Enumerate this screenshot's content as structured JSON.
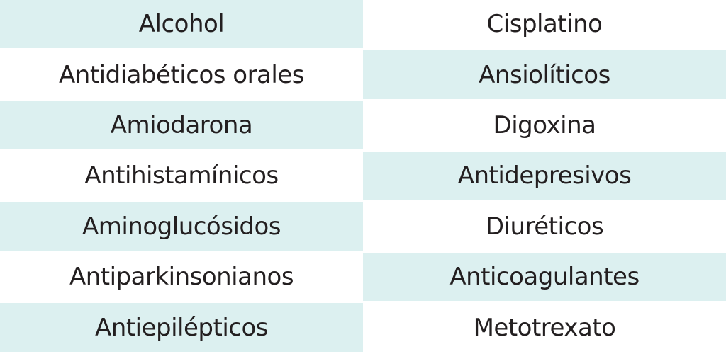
{
  "colors": {
    "shaded": "#dcf0f0",
    "plain": "#ffffff",
    "text": "#231f20"
  },
  "table": {
    "left": [
      "Alcohol",
      "Antidiabéticos orales",
      "Amiodarona",
      "Antihistamínicos",
      "Aminoglucósidos",
      "Antiparkinsonianos",
      "Antiepilépticos"
    ],
    "right": [
      "Cisplatino",
      "Ansiolíticos",
      "Digoxina",
      "Antidepresivos",
      "Diuréticos",
      "Anticoagulantes",
      "Metotrexato"
    ]
  }
}
